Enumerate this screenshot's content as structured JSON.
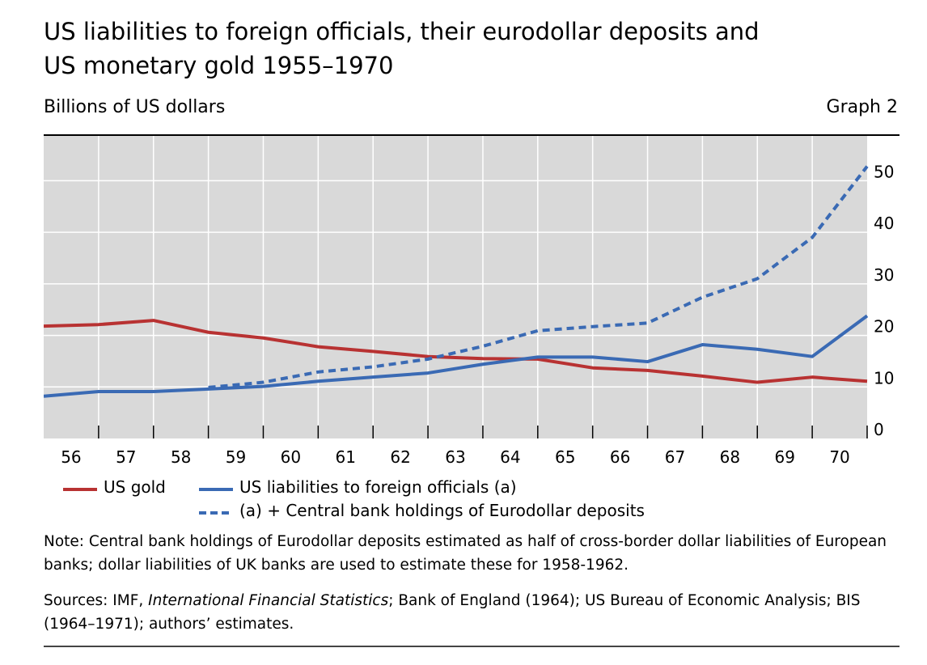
{
  "title_lines": [
    "US liabilities to foreign officials, their eurodollar deposits and",
    "US monetary gold 1955–1970"
  ],
  "units_label": "Billions of US dollars",
  "graph_label": "Graph 2",
  "chart_data": {
    "type": "line",
    "title": "US liabilities to foreign officials, their eurodollar deposits and US monetary gold 1955–1970",
    "ylabel": "Billions of US dollars",
    "ylim": [
      0,
      55
    ],
    "y_ticks": [
      0,
      10,
      20,
      30,
      40,
      50
    ],
    "y_axis_side": "right",
    "grid": true,
    "categories": [
      "56",
      "57",
      "58",
      "59",
      "60",
      "61",
      "62",
      "63",
      "64",
      "65",
      "66",
      "67",
      "68",
      "69",
      "70"
    ],
    "x": [
      55.5,
      56.5,
      57.5,
      58.5,
      59.5,
      60.5,
      61.5,
      62.5,
      63.5,
      64.5,
      65.5,
      66.5,
      67.5,
      68.5,
      69.5,
      70.5
    ],
    "series": [
      {
        "name": "US gold",
        "color": "#b83232",
        "dash": false,
        "values": [
          21.8,
          22.1,
          22.9,
          20.6,
          19.5,
          17.8,
          16.9,
          15.9,
          15.5,
          15.4,
          13.7,
          13.2,
          12.1,
          10.9,
          11.9,
          11.1
        ]
      },
      {
        "name": "US liabilities to foreign officials (a)",
        "color": "#3a6ab4",
        "dash": false,
        "values": [
          8.2,
          9.1,
          9.1,
          9.6,
          10.1,
          11.1,
          11.9,
          12.7,
          14.4,
          15.8,
          15.8,
          14.9,
          18.2,
          17.3,
          15.9,
          23.8
        ]
      },
      {
        "name": "(a) + Central bank holdings of Eurodollar deposits",
        "color": "#3a6ab4",
        "dash": true,
        "values": [
          null,
          null,
          null,
          9.9,
          10.9,
          12.9,
          13.9,
          15.4,
          17.9,
          20.9,
          21.7,
          22.4,
          27.4,
          31.0,
          39.0,
          52.8
        ]
      }
    ],
    "legend_position": "bottom"
  },
  "legend": {
    "gold": "US gold",
    "liab": "US liabilities to foreign officials (a)",
    "euro": "(a) + Central bank holdings of Eurodollar deposits"
  },
  "colors": {
    "red": "#b83232",
    "blue": "#3a6ab4",
    "plot_bg": "#d9d9d9"
  },
  "note": "Note: Central bank holdings of Eurodollar deposits estimated as half of cross-border dollar liabilities of European banks; dollar liabilities of UK banks are used to estimate these for 1958-1962.",
  "sources": {
    "prefix": "Sources: IMF, ",
    "italic": "International Financial Statistics",
    "suffix": "; Bank of England (1964); US Bureau of Economic Analysis; BIS (1964–1971); authors’ estimates."
  }
}
